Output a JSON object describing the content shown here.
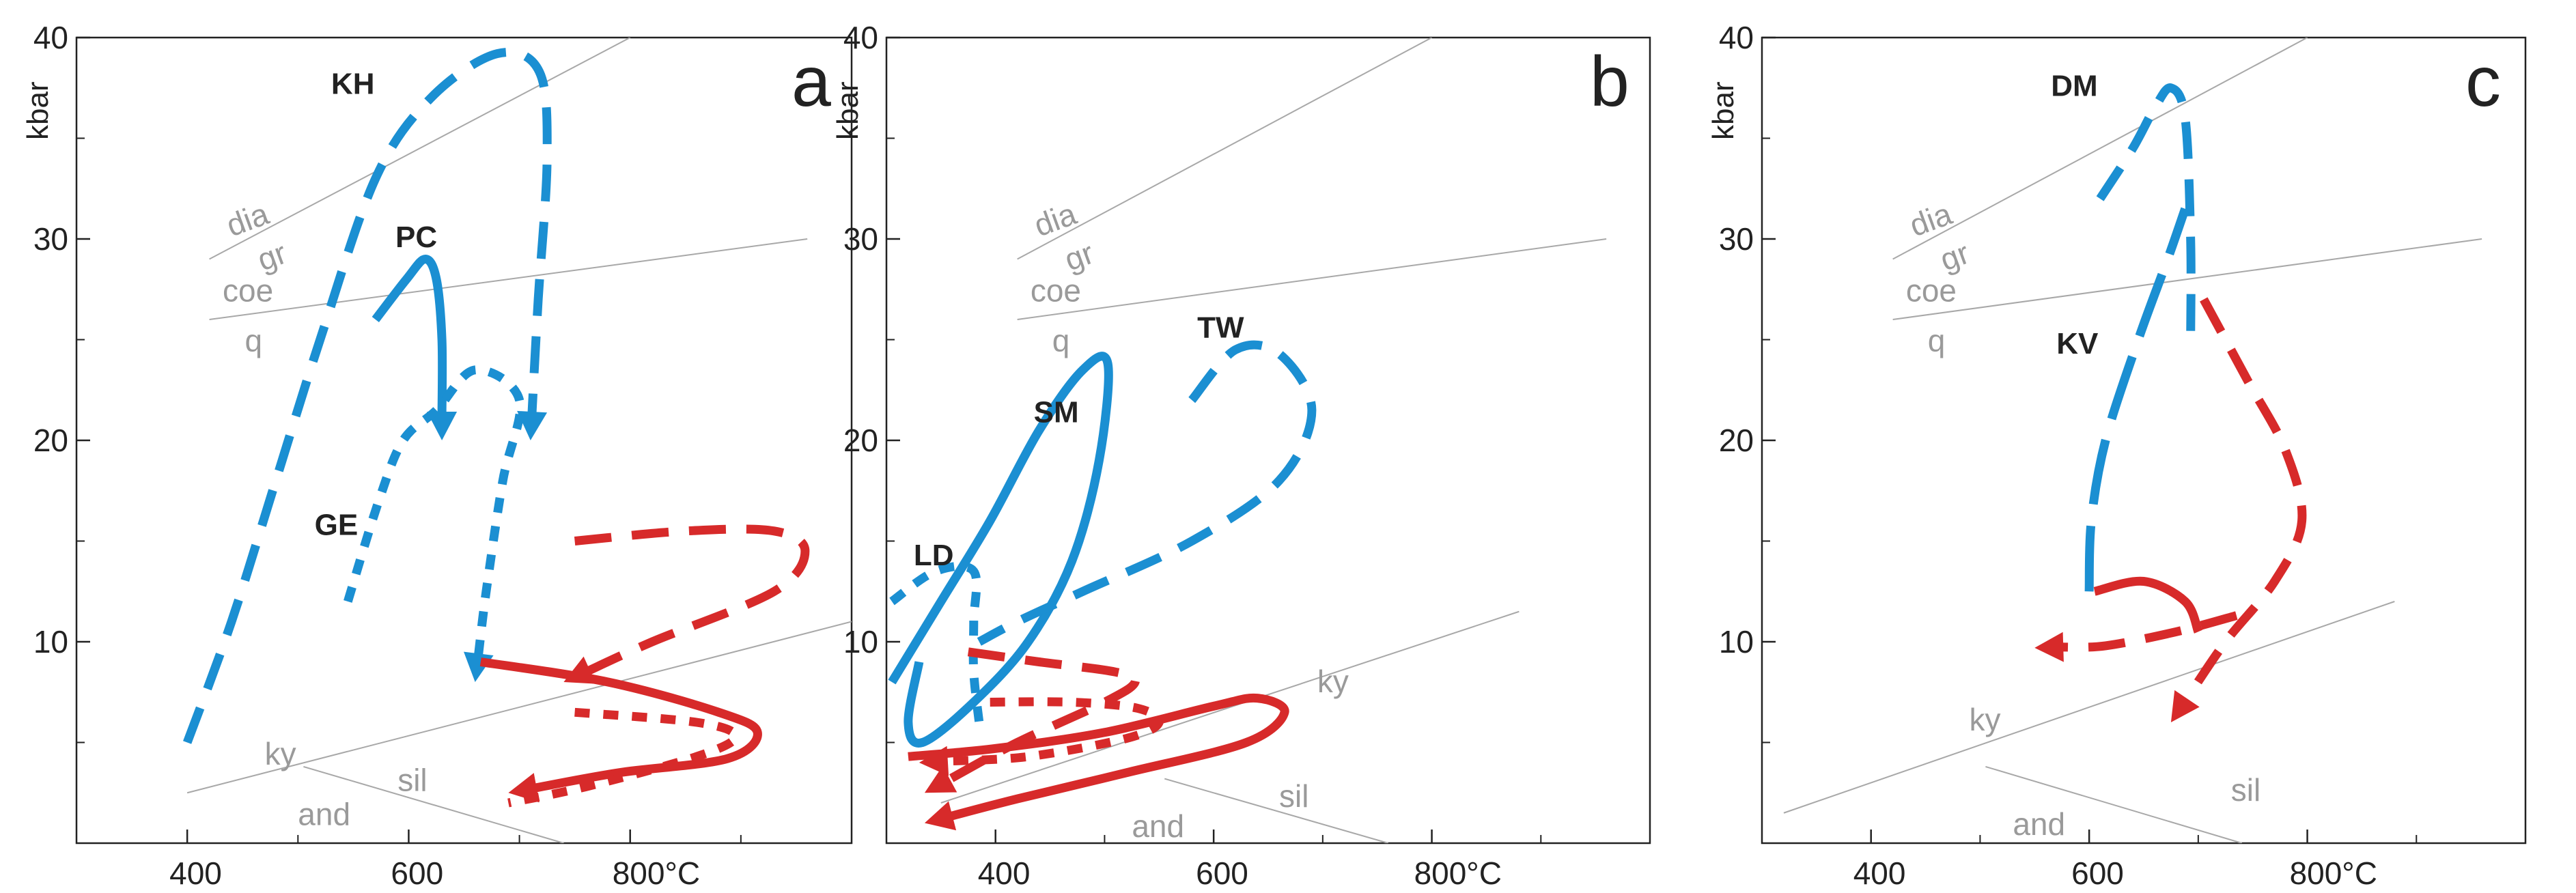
{
  "colors": {
    "blue": "#1b8fd2",
    "red": "#d72a2a",
    "phase": "#a8a8a8",
    "frame": "#222222"
  },
  "chart_data": [
    {
      "type": "line",
      "panel": "a",
      "xlabel": "°C",
      "ylabel": "kbar",
      "xlim": [
        300,
        1000
      ],
      "ylim": [
        0,
        40
      ],
      "xticks": [
        400,
        600,
        800
      ],
      "xtick_labels": [
        "400",
        "600",
        "800°C"
      ],
      "yticks": [
        10,
        20,
        30,
        40
      ],
      "ytick_labels": [
        "10",
        "20",
        "30",
        "40"
      ],
      "phase_lines": [
        {
          "name": "dia-gr",
          "points": [
            [
              420,
              29
            ],
            [
              800,
              40
            ]
          ]
        },
        {
          "name": "coe-q",
          "points": [
            [
              420,
              26
            ],
            [
              960,
              30
            ]
          ]
        },
        {
          "name": "ky-sil",
          "points": [
            [
              400,
              2.5
            ],
            [
              1000,
              11
            ]
          ]
        },
        {
          "name": "sil-and",
          "points": [
            [
              505,
              3.8
            ],
            [
              740,
              0
            ]
          ]
        }
      ],
      "phase_labels": [
        {
          "text": "dia",
          "x": 440,
          "y": 30.1
        },
        {
          "text": "gr",
          "x": 468,
          "y": 28.4
        },
        {
          "text": "coe",
          "x": 432,
          "y": 26.9
        },
        {
          "text": "q",
          "x": 452,
          "y": 24.4
        },
        {
          "text": "ky",
          "x": 470,
          "y": 3.9
        },
        {
          "text": "sil",
          "x": 590,
          "y": 2.6
        },
        {
          "text": "and",
          "x": 500,
          "y": 0.9
        }
      ],
      "series": [
        {
          "name": "KH",
          "color": "blue",
          "style": "dashed",
          "arrow": true,
          "label": {
            "text": "KH",
            "x": 530,
            "y": 37.2
          },
          "points": [
            [
              400,
              5
            ],
            [
              440,
              11
            ],
            [
              480,
              18
            ],
            [
              520,
              25
            ],
            [
              570,
              33
            ],
            [
              620,
              37
            ],
            [
              680,
              39.2
            ],
            [
              718,
              38.3
            ],
            [
              725,
              34
            ],
            [
              717,
              27
            ],
            [
              710,
              20
            ]
          ]
        },
        {
          "name": "PC",
          "color": "blue",
          "style": "solid",
          "arrow": true,
          "label": {
            "text": "PC",
            "x": 588,
            "y": 29.6
          },
          "points": [
            [
              570,
              26
            ],
            [
              598,
              28
            ],
            [
              615,
              29
            ],
            [
              625,
              28
            ],
            [
              630,
              25
            ],
            [
              630,
              20
            ]
          ]
        },
        {
          "name": "GE",
          "color": "blue",
          "style": "dotted",
          "arrow": true,
          "label": {
            "text": "GE",
            "x": 515,
            "y": 15.3
          },
          "points": [
            [
              545,
              12
            ],
            [
              573,
              17
            ],
            [
              595,
              20
            ],
            [
              625,
              21.5
            ],
            [
              660,
              23.5
            ],
            [
              700,
              22
            ],
            [
              685,
              18
            ],
            [
              670,
              12.5
            ],
            [
              660,
              8
            ]
          ]
        },
        {
          "name": "a-red-dashed",
          "color": "red",
          "style": "dashed",
          "arrow": true,
          "points": [
            [
              750,
              15
            ],
            [
              850,
              15.5
            ],
            [
              930,
              15.5
            ],
            [
              958,
              14.5
            ],
            [
              930,
              12.5
            ],
            [
              820,
              10
            ],
            [
              740,
              8
            ]
          ]
        },
        {
          "name": "a-red-solid",
          "color": "red",
          "style": "solid",
          "arrow": true,
          "points": [
            [
              665,
              9
            ],
            [
              780,
              8
            ],
            [
              880,
              6.5
            ],
            [
              915,
              5.5
            ],
            [
              888,
              4.2
            ],
            [
              790,
              3.5
            ],
            [
              690,
              2.5
            ]
          ]
        },
        {
          "name": "a-red-dotted",
          "color": "red",
          "style": "dotted",
          "arrow": false,
          "points": [
            [
              750,
              6.5
            ],
            [
              860,
              6
            ],
            [
              895,
              5.3
            ],
            [
              860,
              4.3
            ],
            [
              760,
              2.8
            ],
            [
              690,
              2
            ]
          ]
        }
      ]
    },
    {
      "type": "line",
      "panel": "b",
      "xlabel": "°C",
      "ylabel": "kbar",
      "xlim": [
        300,
        1000
      ],
      "ylim": [
        0,
        40
      ],
      "xticks": [
        400,
        600,
        800
      ],
      "xtick_labels": [
        "400",
        "600",
        "800°C"
      ],
      "yticks": [
        10,
        20,
        30,
        40
      ],
      "ytick_labels": [
        "10",
        "20",
        "30",
        "40"
      ],
      "phase_lines": [
        {
          "name": "dia-gr",
          "points": [
            [
              420,
              29
            ],
            [
              800,
              40
            ]
          ]
        },
        {
          "name": "coe-q",
          "points": [
            [
              420,
              26
            ],
            [
              960,
              30
            ]
          ]
        },
        {
          "name": "ky-sil",
          "points": [
            [
              350,
              2
            ],
            [
              880,
              11.5
            ]
          ]
        },
        {
          "name": "sil-and",
          "points": [
            [
              555,
              3.2
            ],
            [
              760,
              0
            ]
          ]
        }
      ],
      "phase_labels": [
        {
          "text": "dia",
          "x": 440,
          "y": 30.1
        },
        {
          "text": "gr",
          "x": 468,
          "y": 28.4
        },
        {
          "text": "coe",
          "x": 432,
          "y": 26.9
        },
        {
          "text": "q",
          "x": 452,
          "y": 24.4
        },
        {
          "text": "ky",
          "x": 695,
          "y": 7.5
        },
        {
          "text": "sil",
          "x": 660,
          "y": 1.8
        },
        {
          "text": "and",
          "x": 525,
          "y": 0.3
        }
      ],
      "series": [
        {
          "name": "SM",
          "color": "blue",
          "style": "solid",
          "arrow": false,
          "label": {
            "text": "SM",
            "x": 435,
            "y": 20.9
          },
          "points": [
            [
              305,
              8
            ],
            [
              350,
              12
            ],
            [
              395,
              16
            ],
            [
              440,
              20.5
            ],
            [
              480,
              23.5
            ],
            [
              503,
              23.8
            ],
            [
              495,
              19
            ],
            [
              470,
              14
            ],
            [
              430,
              10
            ],
            [
              380,
              7
            ],
            [
              333,
              5
            ],
            [
              320,
              6
            ],
            [
              330,
              9
            ]
          ]
        },
        {
          "name": "TW",
          "color": "blue",
          "style": "dashed",
          "arrow": false,
          "label": {
            "text": "TW",
            "x": 585,
            "y": 25.1
          },
          "points": [
            [
              580,
              22
            ],
            [
              620,
              24.5
            ],
            [
              660,
              24.3
            ],
            [
              690,
              21.5
            ],
            [
              660,
              18
            ],
            [
              580,
              15
            ],
            [
              480,
              12.5
            ],
            [
              420,
              11
            ],
            [
              385,
              10
            ]
          ]
        },
        {
          "name": "LD",
          "color": "blue",
          "style": "dotted",
          "arrow": false,
          "label": {
            "text": "LD",
            "x": 325,
            "y": 13.8
          },
          "points": [
            [
              305,
              12
            ],
            [
              345,
              13.5
            ],
            [
              380,
              13.5
            ],
            [
              380,
              11
            ],
            [
              380,
              8.5
            ],
            [
              385,
              6
            ]
          ]
        },
        {
          "name": "b-red-dashed",
          "color": "red",
          "style": "dashed",
          "arrow": true,
          "points": [
            [
              375,
              9.5
            ],
            [
              440,
              9
            ],
            [
              510,
              8.5
            ],
            [
              528,
              8
            ],
            [
              500,
              7
            ],
            [
              420,
              5
            ],
            [
              335,
              2.5
            ]
          ]
        },
        {
          "name": "b-red-dotted",
          "color": "red",
          "style": "dotted",
          "arrow": true,
          "points": [
            [
              395,
              7
            ],
            [
              470,
              7
            ],
            [
              530,
              6.7
            ],
            [
              550,
              6
            ],
            [
              520,
              5.2
            ],
            [
              430,
              4.3
            ],
            [
              330,
              4
            ]
          ]
        },
        {
          "name": "b-red-solid",
          "color": "red",
          "style": "solid",
          "arrow": true,
          "points": [
            [
              320,
              4.3
            ],
            [
              400,
              4.7
            ],
            [
              500,
              5.5
            ],
            [
              600,
              6.8
            ],
            [
              640,
              7.2
            ],
            [
              665,
              6.5
            ],
            [
              630,
              5
            ],
            [
              520,
              3.5
            ],
            [
              420,
              2.2
            ],
            [
              335,
              1
            ]
          ]
        }
      ]
    },
    {
      "type": "line",
      "panel": "c",
      "xlabel": "°C",
      "ylabel": "kbar",
      "xlim": [
        300,
        1000
      ],
      "ylim": [
        0,
        40
      ],
      "xticks": [
        400,
        600,
        800
      ],
      "xtick_labels": [
        "400",
        "600",
        "800°C"
      ],
      "yticks": [
        10,
        20,
        30,
        40
      ],
      "ytick_labels": [
        "10",
        "20",
        "30",
        "40"
      ],
      "phase_lines": [
        {
          "name": "dia-gr",
          "points": [
            [
              420,
              29
            ],
            [
              800,
              40
            ]
          ]
        },
        {
          "name": "coe-q",
          "points": [
            [
              420,
              26
            ],
            [
              960,
              30
            ]
          ]
        },
        {
          "name": "ky-sil",
          "points": [
            [
              320,
              1.5
            ],
            [
              880,
              12
            ]
          ]
        },
        {
          "name": "sil-and",
          "points": [
            [
              505,
              3.8
            ],
            [
              740,
              0
            ]
          ]
        }
      ],
      "phase_labels": [
        {
          "text": "dia",
          "x": 440,
          "y": 30.1
        },
        {
          "text": "gr",
          "x": 468,
          "y": 28.4
        },
        {
          "text": "coe",
          "x": 432,
          "y": 26.9
        },
        {
          "text": "q",
          "x": 452,
          "y": 24.4
        },
        {
          "text": "ky",
          "x": 490,
          "y": 5.6
        },
        {
          "text": "sil",
          "x": 730,
          "y": 2.1
        },
        {
          "text": "and",
          "x": 530,
          "y": 0.4
        }
      ],
      "series": [
        {
          "name": "DM",
          "color": "blue",
          "style": "dashed",
          "arrow": false,
          "label": {
            "text": "DM",
            "x": 565,
            "y": 37.1
          },
          "points": [
            [
              610,
              32
            ],
            [
              640,
              34.5
            ],
            [
              660,
              36.5
            ],
            [
              675,
              37.5
            ],
            [
              688,
              36
            ],
            [
              693,
              30
            ],
            [
              693,
              25
            ]
          ]
        },
        {
          "name": "KV",
          "color": "blue",
          "style": "long-dashed",
          "arrow": false,
          "label": {
            "text": "KV",
            "x": 570,
            "y": 24.3
          },
          "points": [
            [
              600,
              12.5
            ],
            [
              602,
              16
            ],
            [
              615,
              20
            ],
            [
              645,
              25
            ],
            [
              672,
              29
            ],
            [
              688,
              31.5
            ]
          ]
        },
        {
          "name": "c-red-dashed-upper",
          "color": "red",
          "style": "dashed",
          "arrow": true,
          "points": [
            [
              705,
              27
            ],
            [
              745,
              23
            ],
            [
              780,
              19.5
            ],
            [
              795,
              16
            ],
            [
              770,
              13
            ],
            [
              725,
              10
            ],
            [
              675,
              6
            ]
          ]
        },
        {
          "name": "c-red-solid",
          "color": "red",
          "style": "solid",
          "arrow": false,
          "points": [
            [
              605,
              12.5
            ],
            [
              650,
              13
            ],
            [
              688,
              12
            ],
            [
              700,
              10.5
            ]
          ]
        },
        {
          "name": "c-red-dashed-lower",
          "color": "red",
          "style": "dashed",
          "arrow": true,
          "points": [
            [
              735,
              11.3
            ],
            [
              680,
              10.5
            ],
            [
              615,
              9.8
            ],
            [
              550,
              9.7
            ]
          ]
        }
      ]
    }
  ],
  "panel_letters": [
    "a",
    "b",
    "c"
  ],
  "unit_label": "kbar"
}
